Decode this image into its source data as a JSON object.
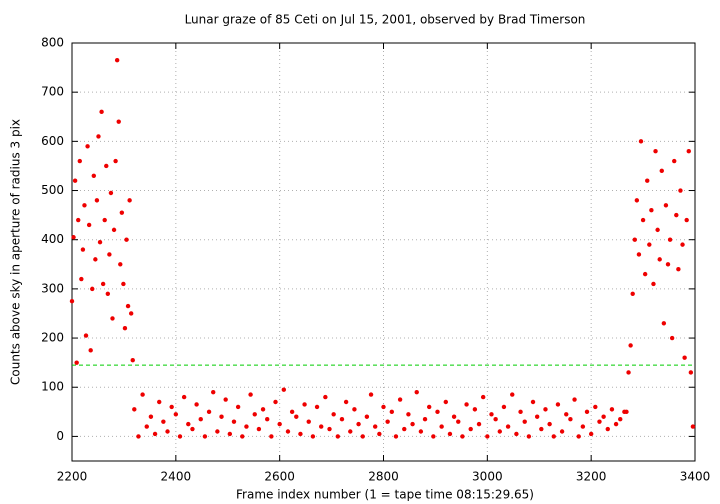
{
  "chart_data": {
    "type": "scatter",
    "title": "Lunar graze of 85 Ceti on Jul 15, 2001, observed by Brad Timerson",
    "xlabel": "Frame index number (1 = tape time 08:15:29.65)",
    "ylabel": "Counts above sky in aperture of radius 3 pix",
    "xlim": [
      2200,
      3400
    ],
    "xticks": [
      2200,
      2400,
      2600,
      2800,
      3000,
      3200,
      3400
    ],
    "ylim": [
      -50,
      800
    ],
    "yticks": [
      0,
      100,
      200,
      300,
      400,
      500,
      600,
      700,
      800
    ],
    "grid": true,
    "hline": {
      "value": 145,
      "color": "#00cc00"
    },
    "series": [
      {
        "color": "#ee0000",
        "x": [
          2200,
          2203,
          2206,
          2209,
          2212,
          2215,
          2218,
          2221,
          2224,
          2227,
          2230,
          2233,
          2236,
          2239,
          2242,
          2245,
          2248,
          2251,
          2254,
          2257,
          2260,
          2263,
          2266,
          2269,
          2272,
          2275,
          2278,
          2281,
          2284,
          2287,
          2290,
          2293,
          2296,
          2299,
          2302,
          2305,
          2308,
          2311,
          2314,
          2317,
          2320,
          2328,
          2336,
          2344,
          2352,
          2360,
          2368,
          2376,
          2384,
          2392,
          2400,
          2408,
          2416,
          2424,
          2432,
          2440,
          2448,
          2456,
          2464,
          2472,
          2480,
          2488,
          2496,
          2504,
          2512,
          2520,
          2528,
          2536,
          2544,
          2552,
          2560,
          2568,
          2576,
          2584,
          2592,
          2600,
          2608,
          2616,
          2624,
          2632,
          2640,
          2648,
          2656,
          2664,
          2672,
          2680,
          2688,
          2696,
          2704,
          2712,
          2720,
          2728,
          2736,
          2744,
          2752,
          2760,
          2768,
          2776,
          2784,
          2792,
          2800,
          2808,
          2816,
          2824,
          2832,
          2840,
          2848,
          2856,
          2864,
          2872,
          2880,
          2888,
          2896,
          2904,
          2912,
          2920,
          2928,
          2936,
          2944,
          2952,
          2960,
          2968,
          2976,
          2984,
          2992,
          3000,
          3008,
          3016,
          3024,
          3032,
          3040,
          3048,
          3056,
          3064,
          3072,
          3080,
          3088,
          3096,
          3104,
          3112,
          3120,
          3128,
          3136,
          3144,
          3152,
          3160,
          3168,
          3176,
          3184,
          3192,
          3200,
          3208,
          3216,
          3224,
          3232,
          3240,
          3248,
          3256,
          3264,
          3268,
          3272,
          3276,
          3280,
          3284,
          3288,
          3292,
          3296,
          3300,
          3304,
          3308,
          3312,
          3316,
          3320,
          3324,
          3328,
          3332,
          3336,
          3340,
          3344,
          3348,
          3352,
          3356,
          3360,
          3364,
          3368,
          3372,
          3376,
          3380,
          3384,
          3388,
          3392,
          3396
        ],
        "values": [
          275,
          405,
          520,
          150,
          440,
          560,
          320,
          380,
          470,
          205,
          590,
          430,
          175,
          300,
          530,
          360,
          480,
          610,
          395,
          660,
          310,
          440,
          550,
          290,
          370,
          495,
          240,
          420,
          560,
          765,
          640,
          350,
          455,
          310,
          220,
          400,
          265,
          480,
          250,
          155,
          55,
          0,
          85,
          20,
          40,
          5,
          70,
          30,
          10,
          60,
          45,
          0,
          80,
          25,
          15,
          65,
          35,
          0,
          50,
          90,
          10,
          40,
          75,
          5,
          30,
          60,
          0,
          20,
          85,
          45,
          15,
          55,
          35,
          0,
          70,
          25,
          95,
          10,
          50,
          40,
          5,
          65,
          30,
          0,
          60,
          20,
          80,
          15,
          45,
          0,
          35,
          70,
          10,
          55,
          25,
          0,
          40,
          85,
          20,
          5,
          60,
          30,
          50,
          0,
          75,
          15,
          45,
          25,
          90,
          10,
          35,
          60,
          0,
          50,
          20,
          70,
          5,
          40,
          30,
          0,
          65,
          15,
          55,
          25,
          80,
          0,
          45,
          35,
          10,
          60,
          20,
          85,
          5,
          50,
          30,
          0,
          70,
          40,
          15,
          55,
          25,
          0,
          65,
          10,
          45,
          35,
          75,
          0,
          20,
          50,
          5,
          60,
          30,
          40,
          15,
          55,
          25,
          35,
          50,
          50,
          130,
          185,
          290,
          400,
          480,
          370,
          600,
          440,
          330,
          520,
          390,
          460,
          310,
          580,
          420,
          360,
          540,
          230,
          470,
          350,
          400,
          200,
          560,
          450,
          340,
          500,
          390,
          160,
          440,
          580,
          130,
          20
        ]
      }
    ]
  }
}
